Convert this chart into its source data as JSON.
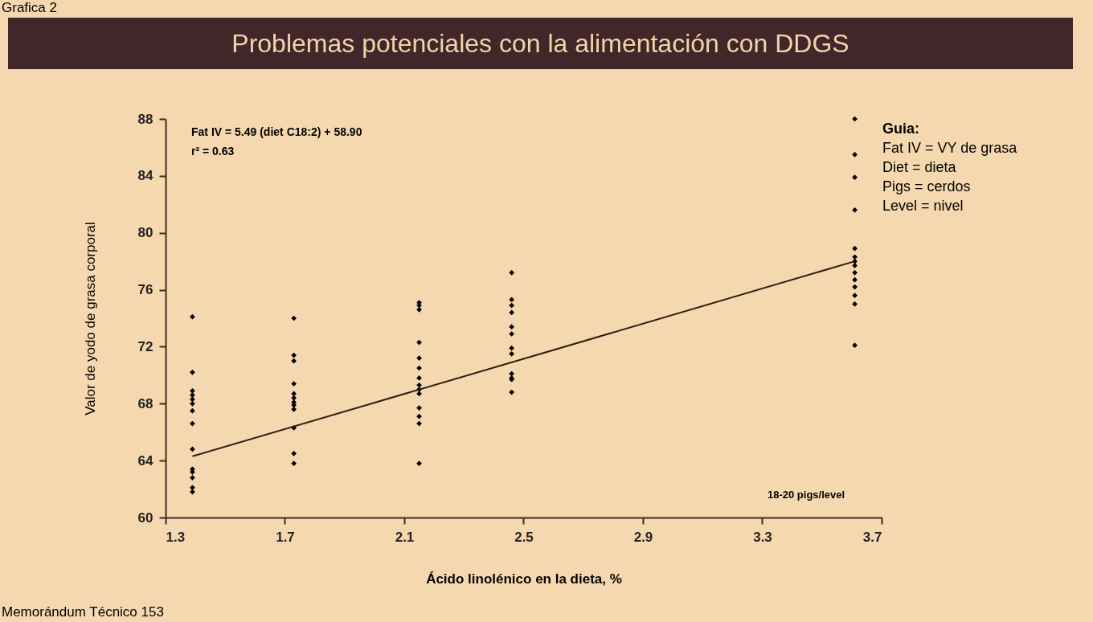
{
  "chart_data": {
    "type": "scatter",
    "title": "Problemas potenciales con la alimentación con DDGS",
    "xlabel": "Ácido linolénico en la dieta, %",
    "ylabel": "Valor de yodo de grasa corporal",
    "annotations": [
      "Grafica 2",
      "Fat IV = 5.49 (diet C18:2) + 58.90",
      "r² = 0.63",
      "18-20 pigs/level",
      "Guia:",
      "Fat IV = VY de grasa",
      "Diet = dieta",
      "Pigs = cerdos",
      "Level = nivel",
      "Memorándum Técnico 153"
    ],
    "xlim": [
      1.3,
      3.7
    ],
    "xticks": [
      1.3,
      1.7,
      2.1,
      2.5,
      2.9,
      3.3,
      3.7
    ],
    "ylim": [
      60,
      88
    ],
    "yticks": [
      60,
      64,
      68,
      72,
      76,
      80,
      84,
      88
    ],
    "grid": false,
    "series": [
      {
        "marker": "diamond",
        "color": "#000000",
        "x": [
          1.39,
          1.39,
          1.39,
          1.39,
          1.39,
          1.39,
          1.39,
          1.39,
          1.39,
          1.39,
          1.39,
          1.39,
          1.39,
          1.39,
          1.73,
          1.73,
          1.73,
          1.73,
          1.73,
          1.73,
          1.73,
          1.73,
          1.73,
          1.73,
          1.73,
          1.73,
          2.15,
          2.15,
          2.15,
          2.15,
          2.15,
          2.15,
          2.15,
          2.15,
          2.15,
          2.15,
          2.15,
          2.15,
          2.15,
          2.15,
          2.46,
          2.46,
          2.46,
          2.46,
          2.46,
          2.46,
          2.46,
          2.46,
          2.46,
          2.46,
          2.46,
          2.46,
          3.61,
          3.61,
          3.61,
          3.61,
          3.61,
          3.61,
          3.61,
          3.61,
          3.61,
          3.61,
          3.61,
          3.61,
          3.61,
          3.61
        ],
        "values": [
          74.1,
          70.2,
          68.9,
          68.6,
          68.3,
          68.0,
          67.5,
          66.6,
          64.8,
          63.4,
          63.2,
          62.8,
          62.1,
          61.8,
          74.0,
          71.4,
          71.0,
          69.4,
          68.7,
          68.4,
          68.1,
          67.9,
          67.6,
          66.3,
          64.5,
          63.8,
          75.1,
          74.9,
          74.6,
          72.3,
          71.2,
          70.5,
          69.8,
          69.3,
          69.0,
          68.7,
          67.7,
          67.1,
          66.6,
          63.8,
          77.2,
          75.3,
          74.9,
          74.4,
          73.4,
          72.9,
          71.9,
          71.5,
          70.1,
          69.8,
          69.7,
          68.8,
          88.0,
          85.5,
          83.9,
          81.6,
          78.9,
          78.3,
          78.0,
          77.7,
          77.2,
          76.7,
          76.2,
          75.6,
          75.0,
          72.1
        ]
      },
      {
        "type": "line",
        "marker": "none",
        "color": "#2b1d14",
        "x": [
          1.39,
          3.61
        ],
        "values": [
          64.3,
          78.0
        ]
      }
    ]
  }
}
